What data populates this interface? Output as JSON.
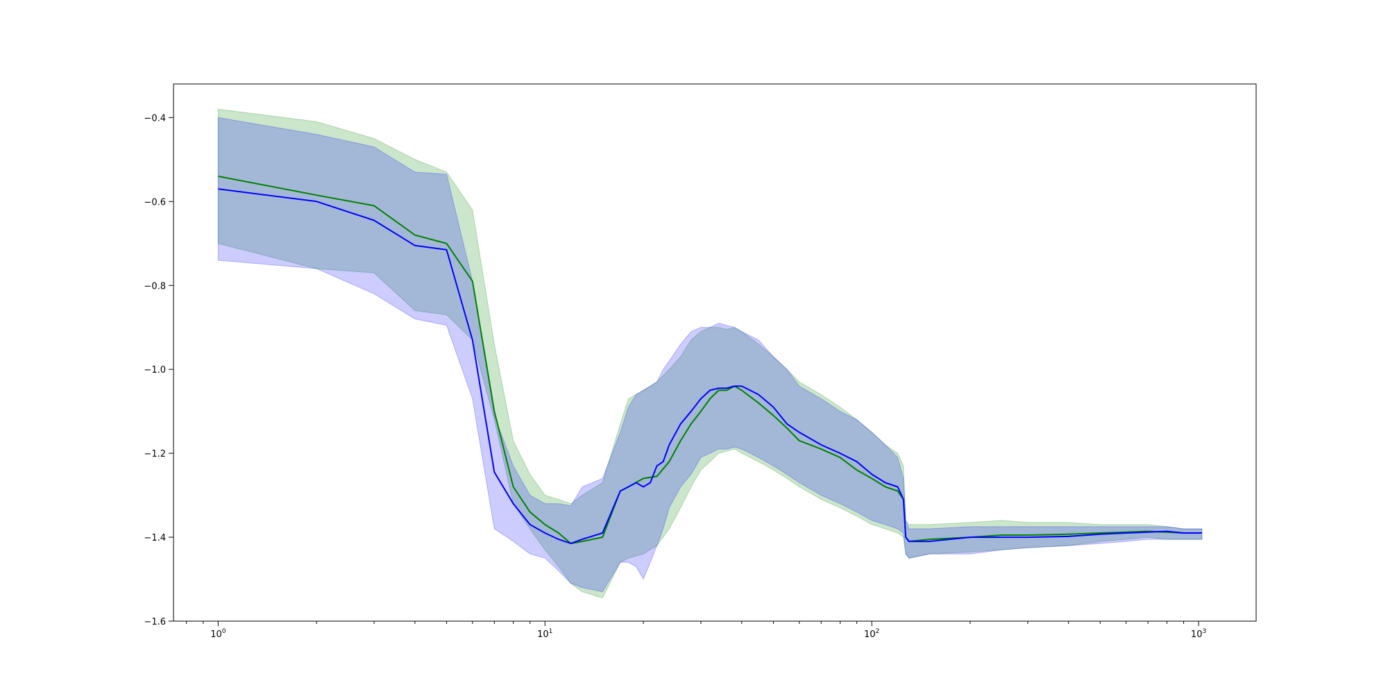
{
  "chart_data": {
    "type": "line",
    "title": "",
    "xlabel": "",
    "ylabel": "",
    "xscale": "log",
    "xlim": [
      0.73,
      1500
    ],
    "ylim": [
      -1.6,
      -0.32
    ],
    "grid": false,
    "legend": "none",
    "xticks": [
      {
        "value": 1,
        "base": "10",
        "exp": "0"
      },
      {
        "value": 10,
        "base": "10",
        "exp": "1"
      },
      {
        "value": 100,
        "base": "10",
        "exp": "2"
      },
      {
        "value": 1000,
        "base": "10",
        "exp": "3"
      }
    ],
    "yticks": [
      {
        "value": -0.4,
        "label": "−0.4"
      },
      {
        "value": -0.6,
        "label": "−0.6"
      },
      {
        "value": -0.8,
        "label": "−0.8"
      },
      {
        "value": -1.0,
        "label": "−1.0"
      },
      {
        "value": -1.2,
        "label": "−1.2"
      },
      {
        "value": -1.4,
        "label": "−1.4"
      },
      {
        "value": -1.6,
        "label": "−1.6"
      }
    ],
    "series": [
      {
        "color": "#008000",
        "fill_color": "#008000",
        "fill_opacity": 0.2,
        "x": [
          1,
          2,
          3,
          4,
          5,
          6,
          7,
          8,
          9,
          10,
          11,
          12,
          13,
          15,
          17,
          18,
          20,
          22,
          24,
          26,
          28,
          30,
          32,
          34,
          36,
          38,
          40,
          45,
          50,
          55,
          60,
          70,
          80,
          90,
          100,
          110,
          120,
          125,
          127,
          130,
          150,
          200,
          250,
          300,
          400,
          500,
          600,
          700,
          800,
          900,
          1024
        ],
        "y": [
          -0.54,
          -0.585,
          -0.61,
          -0.68,
          -0.7,
          -0.79,
          -1.1,
          -1.28,
          -1.34,
          -1.37,
          -1.39,
          -1.415,
          -1.41,
          -1.4,
          -1.29,
          -1.28,
          -1.26,
          -1.255,
          -1.22,
          -1.17,
          -1.13,
          -1.1,
          -1.07,
          -1.05,
          -1.05,
          -1.04,
          -1.05,
          -1.08,
          -1.11,
          -1.14,
          -1.17,
          -1.19,
          -1.21,
          -1.24,
          -1.26,
          -1.28,
          -1.29,
          -1.31,
          -1.4,
          -1.41,
          -1.405,
          -1.4,
          -1.395,
          -1.395,
          -1.393,
          -1.39,
          -1.388,
          -1.386,
          -1.388,
          -1.39,
          -1.39
        ],
        "lower": [
          -0.7,
          -0.76,
          -0.77,
          -0.86,
          -0.87,
          -0.93,
          -1.12,
          -1.32,
          -1.38,
          -1.43,
          -1.47,
          -1.51,
          -1.53,
          -1.545,
          -1.46,
          -1.45,
          -1.44,
          -1.42,
          -1.38,
          -1.33,
          -1.28,
          -1.24,
          -1.22,
          -1.2,
          -1.195,
          -1.19,
          -1.2,
          -1.22,
          -1.24,
          -1.26,
          -1.28,
          -1.31,
          -1.33,
          -1.35,
          -1.37,
          -1.38,
          -1.39,
          -1.4,
          -1.44,
          -1.45,
          -1.44,
          -1.435,
          -1.43,
          -1.425,
          -1.42,
          -1.41,
          -1.405,
          -1.4,
          -1.405,
          -1.405,
          -1.405
        ],
        "upper": [
          -0.38,
          -0.41,
          -0.45,
          -0.5,
          -0.53,
          -0.62,
          -0.94,
          -1.17,
          -1.25,
          -1.3,
          -1.31,
          -1.32,
          -1.3,
          -1.27,
          -1.13,
          -1.07,
          -1.05,
          -1.03,
          -1.0,
          -0.97,
          -0.93,
          -0.91,
          -0.9,
          -0.9,
          -0.905,
          -0.9,
          -0.91,
          -0.94,
          -0.97,
          -1.0,
          -1.03,
          -1.06,
          -1.09,
          -1.12,
          -1.15,
          -1.18,
          -1.2,
          -1.23,
          -1.36,
          -1.37,
          -1.37,
          -1.365,
          -1.36,
          -1.365,
          -1.365,
          -1.37,
          -1.37,
          -1.37,
          -1.375,
          -1.38,
          -1.38
        ]
      },
      {
        "color": "#0000ff",
        "fill_color": "#0000ff",
        "fill_opacity": 0.2,
        "x": [
          1,
          2,
          3,
          4,
          5,
          6,
          7,
          8,
          9,
          10,
          11,
          12,
          13,
          15,
          17,
          18,
          19,
          20,
          21,
          22,
          23,
          24,
          26,
          28,
          30,
          32,
          34,
          36,
          38,
          40,
          45,
          50,
          55,
          60,
          70,
          80,
          90,
          100,
          110,
          120,
          125,
          127,
          130,
          150,
          200,
          250,
          300,
          400,
          500,
          600,
          700,
          800,
          900,
          1024
        ],
        "y": [
          -0.57,
          -0.6,
          -0.645,
          -0.705,
          -0.715,
          -0.93,
          -1.245,
          -1.32,
          -1.37,
          -1.39,
          -1.405,
          -1.415,
          -1.405,
          -1.39,
          -1.29,
          -1.28,
          -1.27,
          -1.28,
          -1.27,
          -1.23,
          -1.22,
          -1.18,
          -1.13,
          -1.1,
          -1.07,
          -1.05,
          -1.045,
          -1.045,
          -1.04,
          -1.04,
          -1.06,
          -1.09,
          -1.13,
          -1.15,
          -1.18,
          -1.2,
          -1.22,
          -1.25,
          -1.27,
          -1.28,
          -1.31,
          -1.4,
          -1.41,
          -1.41,
          -1.4,
          -1.4,
          -1.4,
          -1.398,
          -1.393,
          -1.39,
          -1.388,
          -1.386,
          -1.39,
          -1.39
        ],
        "lower": [
          -0.74,
          -0.76,
          -0.82,
          -0.88,
          -0.895,
          -1.07,
          -1.38,
          -1.41,
          -1.44,
          -1.45,
          -1.48,
          -1.51,
          -1.52,
          -1.53,
          -1.46,
          -1.46,
          -1.47,
          -1.5,
          -1.46,
          -1.42,
          -1.38,
          -1.33,
          -1.28,
          -1.25,
          -1.21,
          -1.2,
          -1.19,
          -1.19,
          -1.185,
          -1.19,
          -1.21,
          -1.23,
          -1.25,
          -1.27,
          -1.3,
          -1.32,
          -1.34,
          -1.36,
          -1.37,
          -1.38,
          -1.39,
          -1.44,
          -1.45,
          -1.44,
          -1.44,
          -1.43,
          -1.425,
          -1.42,
          -1.415,
          -1.41,
          -1.405,
          -1.405,
          -1.405,
          -1.405
        ],
        "upper": [
          -0.4,
          -0.44,
          -0.47,
          -0.53,
          -0.535,
          -0.79,
          -1.11,
          -1.23,
          -1.3,
          -1.32,
          -1.32,
          -1.325,
          -1.28,
          -1.26,
          -1.15,
          -1.09,
          -1.06,
          -1.05,
          -1.04,
          -1.03,
          -1.0,
          -0.98,
          -0.94,
          -0.91,
          -0.9,
          -0.9,
          -0.89,
          -0.895,
          -0.9,
          -0.91,
          -0.93,
          -0.97,
          -1.0,
          -1.04,
          -1.07,
          -1.1,
          -1.12,
          -1.15,
          -1.18,
          -1.21,
          -1.26,
          -1.36,
          -1.38,
          -1.38,
          -1.375,
          -1.375,
          -1.375,
          -1.375,
          -1.375,
          -1.375,
          -1.375,
          -1.375,
          -1.38,
          -1.38
        ]
      }
    ]
  }
}
